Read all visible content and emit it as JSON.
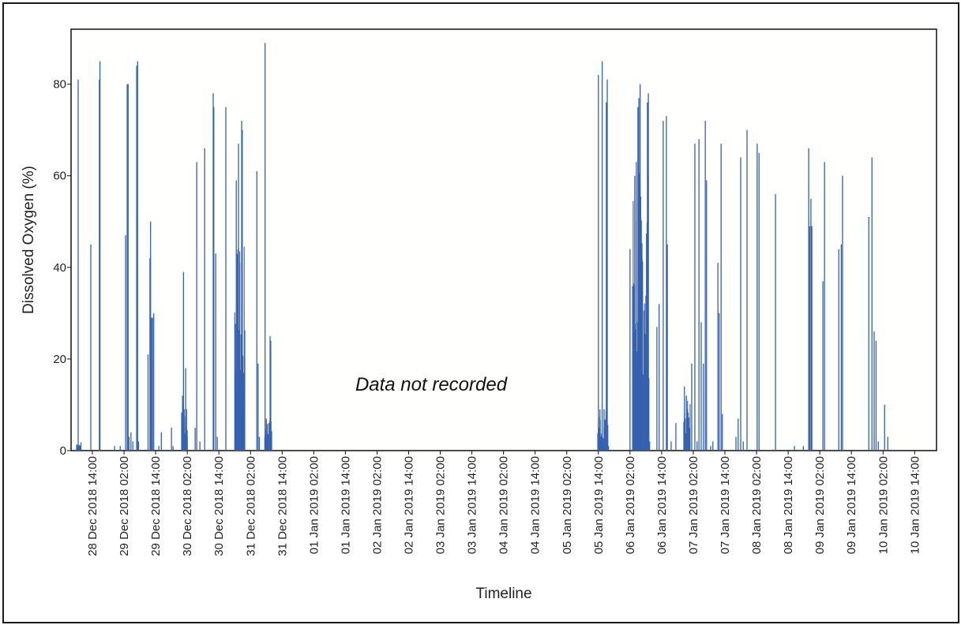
{
  "chart_data": {
    "type": "bar",
    "title": "",
    "xlabel": "Timeline",
    "ylabel": "Dissolved Oxygen (%)",
    "ylim": [
      0,
      92
    ],
    "yticks": [
      0,
      20,
      40,
      60,
      80
    ],
    "xticks": [
      "28 Dec 2018 14:00",
      "29 Dec 2018 02:00",
      "29 Dec 2018 14:00",
      "30 Dec 2018 02:00",
      "30 Dec 2018 14:00",
      "31 Dec 2018 02:00",
      "31 Dec 2018 14:00",
      "01 Jan 2019 02:00",
      "01 Jan 2019 14:00",
      "02 Jan 2019 02:00",
      "02 Jan 2019 14:00",
      "03 Jan 2019 02:00",
      "03 Jan 2019 14:00",
      "04 Jan 2019 02:00",
      "04 Jan 2019 14:00",
      "05 Jan 2019 02:00",
      "05 Jan 2019 14:00",
      "06 Jan 2019 02:00",
      "06 Jan 2019 14:00",
      "07 Jan 2019 02:00",
      "07 Jan 2019 14:00",
      "08 Jan 2019 02:00",
      "08 Jan 2019 14:00",
      "09 Jan 2019 02:00",
      "09 Jan 2019 14:00",
      "10 Jan 2019 02:00",
      "10 Jan 2019 14:00"
    ],
    "grid": false,
    "bar_color": "#3461b0",
    "annotation": "Data not recorded",
    "spikes": [
      {
        "x": -0.45,
        "v": 81
      },
      {
        "x": -0.42,
        "v": 1
      },
      {
        "x": -0.38,
        "v": 1
      },
      {
        "x": -0.05,
        "v": 45
      },
      {
        "x": 0.22,
        "v": 81
      },
      {
        "x": 0.24,
        "v": 85
      },
      {
        "x": 0.7,
        "v": 1
      },
      {
        "x": 0.88,
        "v": 1
      },
      {
        "x": 1.05,
        "v": 47
      },
      {
        "x": 1.1,
        "v": 80
      },
      {
        "x": 1.13,
        "v": 80
      },
      {
        "x": 1.16,
        "v": 3
      },
      {
        "x": 1.22,
        "v": 4
      },
      {
        "x": 1.28,
        "v": 2
      },
      {
        "x": 1.4,
        "v": 84
      },
      {
        "x": 1.43,
        "v": 85
      },
      {
        "x": 1.46,
        "v": 2
      },
      {
        "x": 1.76,
        "v": 21
      },
      {
        "x": 1.82,
        "v": 42
      },
      {
        "x": 1.84,
        "v": 50
      },
      {
        "x": 1.87,
        "v": 29
      },
      {
        "x": 1.9,
        "v": 29
      },
      {
        "x": 1.94,
        "v": 30
      },
      {
        "x": 2.1,
        "v": 1
      },
      {
        "x": 2.18,
        "v": 4
      },
      {
        "x": 2.5,
        "v": 5
      },
      {
        "x": 2.55,
        "v": 1
      },
      {
        "x": 2.85,
        "v": 12
      },
      {
        "x": 2.88,
        "v": 39
      },
      {
        "x": 2.9,
        "v": 9
      },
      {
        "x": 2.95,
        "v": 18
      },
      {
        "x": 3.0,
        "v": 3
      },
      {
        "x": 3.25,
        "v": 5
      },
      {
        "x": 3.3,
        "v": 63
      },
      {
        "x": 3.4,
        "v": 2
      },
      {
        "x": 3.55,
        "v": 66
      },
      {
        "x": 3.82,
        "v": 78
      },
      {
        "x": 3.84,
        "v": 75
      },
      {
        "x": 3.9,
        "v": 43
      },
      {
        "x": 3.95,
        "v": 3
      },
      {
        "x": 4.22,
        "v": 75
      },
      {
        "x": 4.55,
        "v": 59
      },
      {
        "x": 4.58,
        "v": 42
      },
      {
        "x": 4.62,
        "v": 67
      },
      {
        "x": 4.66,
        "v": 41
      },
      {
        "x": 4.72,
        "v": 72
      },
      {
        "x": 4.74,
        "v": 70
      },
      {
        "x": 4.75,
        "v": 8
      },
      {
        "x": 5.2,
        "v": 61
      },
      {
        "x": 5.24,
        "v": 19
      },
      {
        "x": 5.28,
        "v": 3
      },
      {
        "x": 5.46,
        "v": 89
      },
      {
        "x": 5.5,
        "v": 7
      },
      {
        "x": 5.58,
        "v": 6
      },
      {
        "x": 5.62,
        "v": 25
      },
      {
        "x": 5.64,
        "v": 24
      },
      {
        "x": 16.0,
        "v": 82
      },
      {
        "x": 16.05,
        "v": 9
      },
      {
        "x": 16.12,
        "v": 85
      },
      {
        "x": 16.18,
        "v": 9
      },
      {
        "x": 16.25,
        "v": 76
      },
      {
        "x": 16.28,
        "v": 81
      },
      {
        "x": 16.32,
        "v": 1
      },
      {
        "x": 17.0,
        "v": 44
      },
      {
        "x": 17.12,
        "v": 1
      },
      {
        "x": 17.15,
        "v": 60
      },
      {
        "x": 17.2,
        "v": 63
      },
      {
        "x": 17.25,
        "v": 75
      },
      {
        "x": 17.28,
        "v": 77
      },
      {
        "x": 17.32,
        "v": 80
      },
      {
        "x": 17.38,
        "v": 42
      },
      {
        "x": 17.45,
        "v": 30
      },
      {
        "x": 17.55,
        "v": 76
      },
      {
        "x": 17.58,
        "v": 78
      },
      {
        "x": 17.62,
        "v": 2
      },
      {
        "x": 17.85,
        "v": 27
      },
      {
        "x": 17.92,
        "v": 32
      },
      {
        "x": 18.05,
        "v": 72
      },
      {
        "x": 18.15,
        "v": 73
      },
      {
        "x": 18.18,
        "v": 45
      },
      {
        "x": 18.3,
        "v": 2
      },
      {
        "x": 18.45,
        "v": 6
      },
      {
        "x": 18.72,
        "v": 14
      },
      {
        "x": 18.78,
        "v": 12
      },
      {
        "x": 18.82,
        "v": 9
      },
      {
        "x": 18.88,
        "v": 5
      },
      {
        "x": 18.95,
        "v": 19
      },
      {
        "x": 19.05,
        "v": 67
      },
      {
        "x": 19.12,
        "v": 2
      },
      {
        "x": 19.18,
        "v": 68
      },
      {
        "x": 19.25,
        "v": 28
      },
      {
        "x": 19.32,
        "v": 19
      },
      {
        "x": 19.38,
        "v": 72
      },
      {
        "x": 19.42,
        "v": 59
      },
      {
        "x": 19.55,
        "v": 1
      },
      {
        "x": 19.62,
        "v": 2
      },
      {
        "x": 19.78,
        "v": 41
      },
      {
        "x": 19.82,
        "v": 30
      },
      {
        "x": 19.88,
        "v": 67
      },
      {
        "x": 19.92,
        "v": 8
      },
      {
        "x": 20.35,
        "v": 3
      },
      {
        "x": 20.42,
        "v": 7
      },
      {
        "x": 20.5,
        "v": 64
      },
      {
        "x": 20.58,
        "v": 2
      },
      {
        "x": 20.7,
        "v": 70
      },
      {
        "x": 21.02,
        "v": 67
      },
      {
        "x": 21.08,
        "v": 65
      },
      {
        "x": 21.6,
        "v": 56
      },
      {
        "x": 22.2,
        "v": 1
      },
      {
        "x": 22.48,
        "v": 1
      },
      {
        "x": 22.65,
        "v": 66
      },
      {
        "x": 22.68,
        "v": 49
      },
      {
        "x": 22.72,
        "v": 55
      },
      {
        "x": 22.75,
        "v": 49
      },
      {
        "x": 23.1,
        "v": 37
      },
      {
        "x": 23.15,
        "v": 63
      },
      {
        "x": 23.6,
        "v": 44
      },
      {
        "x": 23.68,
        "v": 45
      },
      {
        "x": 23.72,
        "v": 60
      },
      {
        "x": 24.55,
        "v": 51
      },
      {
        "x": 24.65,
        "v": 64
      },
      {
        "x": 24.72,
        "v": 26
      },
      {
        "x": 24.78,
        "v": 24
      },
      {
        "x": 24.85,
        "v": 2
      },
      {
        "x": 25.05,
        "v": 10
      },
      {
        "x": 25.15,
        "v": 3
      }
    ],
    "dense_clusters": [
      {
        "x0": -0.5,
        "x1": -0.35,
        "max": 2
      },
      {
        "x0": 2.82,
        "x1": 3.0,
        "max": 12
      },
      {
        "x0": 4.5,
        "x1": 4.82,
        "max": 45
      },
      {
        "x0": 5.45,
        "x1": 5.68,
        "max": 7
      },
      {
        "x0": 15.98,
        "x1": 16.3,
        "max": 9
      },
      {
        "x0": 17.08,
        "x1": 17.6,
        "max": 62
      },
      {
        "x0": 18.7,
        "x1": 18.9,
        "max": 12
      }
    ]
  }
}
